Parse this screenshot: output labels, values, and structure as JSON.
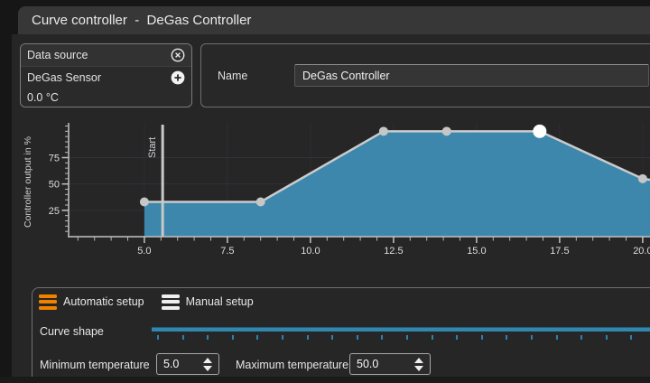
{
  "window": {
    "title": "Curve controller  -  DeGas Controller"
  },
  "data_source": {
    "header": "Data source",
    "sensor": "DeGas Sensor",
    "value": "0.0 °C"
  },
  "name_field": {
    "label": "Name",
    "value": "DeGas Controller"
  },
  "chart_data": {
    "type": "area",
    "ylabel": "Controller output in %",
    "xlabel": "",
    "xlim": [
      2.72,
      20.22
    ],
    "ylim": [
      0,
      108
    ],
    "x_major_ticks": [
      5,
      7.5,
      10,
      12.5,
      15,
      17.5,
      20
    ],
    "x_minor_step": 0.5,
    "x_minor_start": 3,
    "y_major_ticks": [
      25,
      50,
      75
    ],
    "y_minor_step": 5,
    "grid": true,
    "points": [
      {
        "x": 5.0,
        "y": 33,
        "selected": false
      },
      {
        "x": 8.5,
        "y": 33,
        "selected": false
      },
      {
        "x": 12.2,
        "y": 100,
        "selected": false
      },
      {
        "x": 14.1,
        "y": 100,
        "selected": false
      },
      {
        "x": 16.9,
        "y": 100,
        "selected": true
      },
      {
        "x": 20.0,
        "y": 55,
        "selected": false
      }
    ],
    "line_end": {
      "x": 20.22,
      "y": 54
    },
    "start_marker": {
      "x": 5.55,
      "label": "Start"
    },
    "colors": {
      "fill": "#3c87ab",
      "line": "#cbcbcb",
      "marker": "#c6c6c6",
      "selected_marker": "#ffffff",
      "axis": "#c3c3c3",
      "grid_h": "#32323b",
      "grid_v": "#2e2e35",
      "start_line": "#c8c8c8",
      "tick_label": "#dedede",
      "axis_label": "#cfcfcf"
    }
  },
  "setup_tabs": [
    {
      "label": "Automatic setup",
      "active": true
    },
    {
      "label": "Manual setup",
      "active": false
    }
  ],
  "curve_shape": {
    "label": "Curve shape",
    "tick_count": 20
  },
  "min_temp": {
    "label": "Minimum temperature",
    "value": "5.0"
  },
  "max_temp": {
    "label": "Maximum temperature",
    "value": "50.0"
  },
  "colors": {
    "accent_orange": "#f08200",
    "inactive_icon": "#efefef",
    "accent_blue": "#3187ae"
  }
}
